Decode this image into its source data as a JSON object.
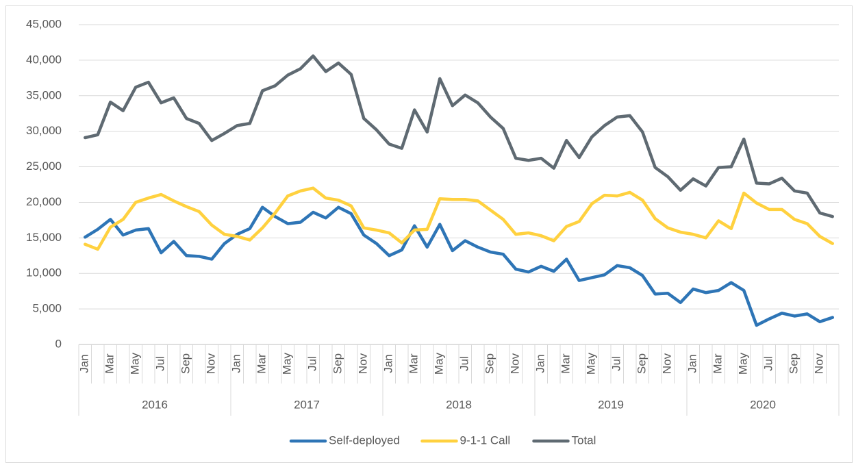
{
  "chart_data": {
    "type": "line",
    "categories": [
      "Jan",
      null,
      "Mar",
      null,
      "May",
      null,
      "Jul",
      null,
      "Sep",
      null,
      "Nov",
      null,
      "Jan",
      null,
      "Mar",
      null,
      "May",
      null,
      "Jul",
      null,
      "Sep",
      null,
      "Nov",
      null,
      "Jan",
      null,
      "Mar",
      null,
      "May",
      null,
      "Jul",
      null,
      "Sep",
      null,
      "Nov",
      null,
      "Jan",
      null,
      "Mar",
      null,
      "May",
      null,
      "Jul",
      null,
      "Sep",
      null,
      "Nov",
      null,
      "Jan",
      null,
      "Mar",
      null,
      "May",
      null,
      "Jul",
      null,
      "Sep",
      null,
      "Nov",
      null
    ],
    "years": [
      "2016",
      "2017",
      "2018",
      "2019",
      "2020"
    ],
    "ylim": [
      0,
      45000
    ],
    "yticks": [
      0,
      {
        "value": 5000,
        "label": "5,000"
      },
      {
        "value": 10000,
        "label": "10,000"
      },
      {
        "value": 15000,
        "label": "15,000"
      },
      {
        "value": 20000,
        "label": "20,000"
      },
      {
        "value": 25000,
        "label": "25,000"
      },
      {
        "value": 30000,
        "label": "30,000"
      },
      {
        "value": 35000,
        "label": "35,000"
      },
      {
        "value": 40000,
        "label": "40,000"
      },
      {
        "value": 45000,
        "label": "45,000"
      }
    ],
    "grid": true,
    "legend": "bottom",
    "series": [
      {
        "name": "Self-deployed",
        "color": "#2e75b6",
        "values": [
          15100,
          16200,
          17600,
          15400,
          16100,
          16300,
          12900,
          14500,
          12500,
          12400,
          12000,
          14200,
          15500,
          16300,
          19300,
          18000,
          17000,
          17200,
          18600,
          17800,
          19300,
          18400,
          15400,
          14200,
          12500,
          13300,
          16700,
          13700,
          16900,
          13200,
          14600,
          13700,
          13000,
          12700,
          10600,
          10200,
          11000,
          10300,
          12000,
          9000,
          9400,
          9800,
          11100,
          10800,
          9700,
          7100,
          7200,
          5900,
          7800,
          7300,
          7600,
          8700,
          7600,
          2700,
          3600,
          4400,
          4000,
          4300,
          3200,
          3800
        ]
      },
      {
        "name": "9-1-1 Call",
        "color": "#ffd13f",
        "values": [
          14100,
          13400,
          16500,
          17600,
          20000,
          20600,
          21100,
          20200,
          19400,
          18700,
          16800,
          15500,
          15200,
          14700,
          16400,
          18500,
          20900,
          21600,
          22000,
          20600,
          20300,
          19500,
          16400,
          16100,
          15700,
          14300,
          16100,
          16200,
          20500,
          20400,
          20400,
          20200,
          18900,
          17600,
          15500,
          15700,
          15300,
          14600,
          16600,
          17300,
          19800,
          21000,
          20900,
          21400,
          20300,
          17700,
          16400,
          15800,
          15500,
          15000,
          17400,
          16300,
          21300,
          19900,
          19000,
          19000,
          17600,
          17000,
          15200,
          14200
        ]
      },
      {
        "name": "Total",
        "color": "#5f6a72",
        "values": [
          29100,
          29500,
          34100,
          32900,
          36200,
          36900,
          34000,
          34700,
          31800,
          31100,
          28700,
          29700,
          30800,
          31100,
          35700,
          36400,
          37900,
          38800,
          40600,
          38400,
          39600,
          38000,
          31800,
          30200,
          28200,
          27600,
          33000,
          29900,
          37400,
          33600,
          35100,
          34000,
          32000,
          30400,
          26200,
          25900,
          26200,
          24800,
          28700,
          26300,
          29200,
          30800,
          32000,
          32200,
          29900,
          24900,
          23600,
          21700,
          23300,
          22300,
          24900,
          25000,
          28900,
          22700,
          22600,
          23400,
          21600,
          21300,
          18500,
          18000
        ]
      }
    ]
  }
}
